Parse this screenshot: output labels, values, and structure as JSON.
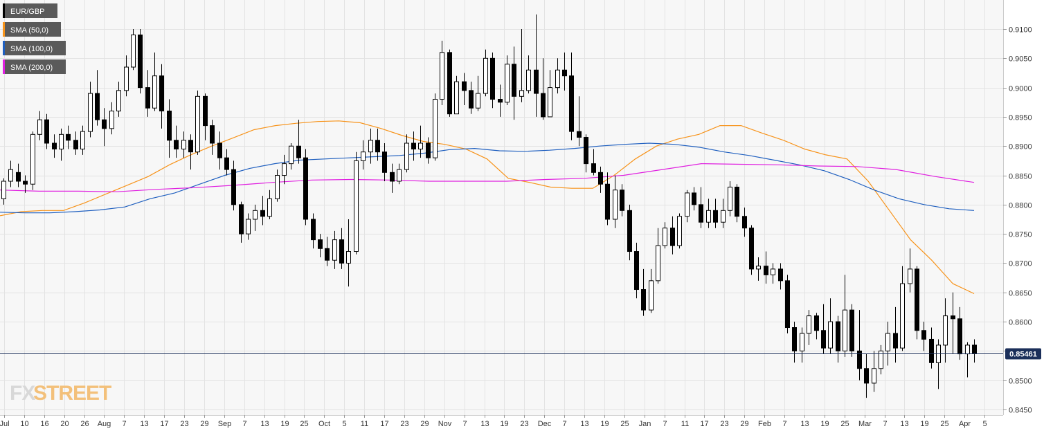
{
  "chart_data": {
    "type": "candlestick",
    "instrument": "EUR/GBP",
    "ylim": [
      0.8445,
      0.9125
    ],
    "y_ticks": [
      "0.9100",
      "0.9050",
      "0.9000",
      "0.8950",
      "0.8900",
      "0.8850",
      "0.8800",
      "0.8750",
      "0.8700",
      "0.8650",
      "0.8600",
      "0.8550",
      "0.8500",
      "0.8450"
    ],
    "x_ticks": [
      "Jul",
      "10",
      "16",
      "20",
      "26",
      "Aug",
      "7",
      "13",
      "17",
      "23",
      "29",
      "Sep",
      "7",
      "13",
      "19",
      "25",
      "Oct",
      "5",
      "11",
      "17",
      "23",
      "29",
      "Nov",
      "7",
      "13",
      "19",
      "23",
      "Dec",
      "7",
      "13",
      "19",
      "25",
      "Jan",
      "7",
      "11",
      "17",
      "23",
      "29",
      "Feb",
      "7",
      "13",
      "19",
      "25",
      "Mar",
      "7",
      "13",
      "19",
      "25",
      "Apr",
      "5"
    ],
    "last_price": "0.85461",
    "grid": true,
    "legend": [
      {
        "label": "EUR/GBP",
        "color": "#000000"
      },
      {
        "label": "SMA (50,0)",
        "color": "#f7931a"
      },
      {
        "label": "SMA (100,0)",
        "color": "#1f5fbf"
      },
      {
        "label": "SMA (200,0)",
        "color": "#e020e0"
      }
    ],
    "series": [
      {
        "name": "SMA (50,0)",
        "color": "#f7931a",
        "values": [
          0.8781,
          0.8788,
          0.879,
          0.879,
          0.8803,
          0.8818,
          0.8833,
          0.8848,
          0.8868,
          0.8885,
          0.89,
          0.8914,
          0.8928,
          0.8935,
          0.8939,
          0.8942,
          0.8943,
          0.894,
          0.893,
          0.8918,
          0.8908,
          0.8903,
          0.8895,
          0.8878,
          0.8845,
          0.8838,
          0.883,
          0.8828,
          0.8828,
          0.885,
          0.8878,
          0.89,
          0.8912,
          0.892,
          0.8935,
          0.8935,
          0.8922,
          0.891,
          0.8895,
          0.8885,
          0.8878,
          0.884,
          0.879,
          0.874,
          0.8705,
          0.8665,
          0.8648
        ]
      },
      {
        "name": "SMA (100,0)",
        "color": "#1f5fbf",
        "values": [
          0.8787,
          0.8786,
          0.8786,
          0.8788,
          0.8791,
          0.8796,
          0.881,
          0.882,
          0.8835,
          0.885,
          0.8862,
          0.887,
          0.8876,
          0.8878,
          0.888,
          0.8882,
          0.8884,
          0.8888,
          0.8894,
          0.8896,
          0.8892,
          0.8891,
          0.8893,
          0.8896,
          0.89,
          0.8903,
          0.8905,
          0.8903,
          0.8898,
          0.889,
          0.8884,
          0.8876,
          0.8868,
          0.8858,
          0.8843,
          0.8825,
          0.881,
          0.88,
          0.8793,
          0.879
        ]
      },
      {
        "name": "SMA (200,0)",
        "color": "#e020e0",
        "values": [
          0.8825,
          0.8823,
          0.8823,
          0.8822,
          0.8826,
          0.8829,
          0.8833,
          0.8838,
          0.8842,
          0.8843,
          0.8842,
          0.884,
          0.884,
          0.884,
          0.8843,
          0.8845,
          0.885,
          0.886,
          0.887,
          0.8869,
          0.8868,
          0.8866,
          0.8865,
          0.886,
          0.8848,
          0.8838
        ]
      }
    ],
    "candles": [
      [
        0.881,
        0.884,
        0.88,
        0.8845
      ],
      [
        0.884,
        0.886,
        0.883,
        0.8875
      ],
      [
        0.8855,
        0.884,
        0.883,
        0.887
      ],
      [
        0.884,
        0.8835,
        0.882,
        0.885
      ],
      [
        0.8835,
        0.892,
        0.8825,
        0.8925
      ],
      [
        0.892,
        0.8945,
        0.891,
        0.896
      ],
      [
        0.8945,
        0.8905,
        0.8895,
        0.8955
      ],
      [
        0.8905,
        0.8895,
        0.888,
        0.892
      ],
      [
        0.8895,
        0.892,
        0.8875,
        0.893
      ],
      [
        0.892,
        0.891,
        0.8895,
        0.8935
      ],
      [
        0.891,
        0.8895,
        0.8885,
        0.8925
      ],
      [
        0.8895,
        0.8925,
        0.8885,
        0.8935
      ],
      [
        0.8925,
        0.899,
        0.8915,
        0.901
      ],
      [
        0.899,
        0.8945,
        0.8935,
        0.903
      ],
      [
        0.8945,
        0.893,
        0.89,
        0.8965
      ],
      [
        0.893,
        0.896,
        0.892,
        0.8975
      ],
      [
        0.896,
        0.8995,
        0.895,
        0.901
      ],
      [
        0.8995,
        0.9035,
        0.8985,
        0.9055
      ],
      [
        0.9035,
        0.909,
        0.903,
        0.91
      ],
      [
        0.909,
        0.9,
        0.899,
        0.91
      ],
      [
        0.9,
        0.8965,
        0.895,
        0.903
      ],
      [
        0.8965,
        0.902,
        0.896,
        0.906
      ],
      [
        0.902,
        0.896,
        0.893,
        0.904
      ],
      [
        0.896,
        0.891,
        0.888,
        0.898
      ],
      [
        0.891,
        0.8895,
        0.888,
        0.8935
      ],
      [
        0.8895,
        0.891,
        0.888,
        0.8925
      ],
      [
        0.891,
        0.889,
        0.886,
        0.892
      ],
      [
        0.889,
        0.8985,
        0.8885,
        0.8995
      ],
      [
        0.8985,
        0.8935,
        0.891,
        0.899
      ],
      [
        0.8935,
        0.8905,
        0.8885,
        0.8945
      ],
      [
        0.8905,
        0.888,
        0.886,
        0.8925
      ],
      [
        0.888,
        0.886,
        0.885,
        0.8895
      ],
      [
        0.886,
        0.88,
        0.879,
        0.8875
      ],
      [
        0.88,
        0.875,
        0.8735,
        0.8805
      ],
      [
        0.875,
        0.8775,
        0.874,
        0.8785
      ],
      [
        0.8775,
        0.879,
        0.8755,
        0.88
      ],
      [
        0.879,
        0.878,
        0.8765,
        0.8815
      ],
      [
        0.878,
        0.881,
        0.8775,
        0.8825
      ],
      [
        0.881,
        0.885,
        0.8805,
        0.886
      ],
      [
        0.885,
        0.887,
        0.8835,
        0.8885
      ],
      [
        0.887,
        0.89,
        0.886,
        0.8905
      ],
      [
        0.89,
        0.888,
        0.887,
        0.8945
      ],
      [
        0.888,
        0.8775,
        0.8765,
        0.8895
      ],
      [
        0.8775,
        0.874,
        0.8725,
        0.8785
      ],
      [
        0.874,
        0.8725,
        0.871,
        0.875
      ],
      [
        0.8725,
        0.8705,
        0.8695,
        0.8745
      ],
      [
        0.8705,
        0.874,
        0.869,
        0.8755
      ],
      [
        0.874,
        0.87,
        0.869,
        0.876
      ],
      [
        0.87,
        0.872,
        0.866,
        0.8775
      ],
      [
        0.872,
        0.8875,
        0.8715,
        0.889
      ],
      [
        0.8875,
        0.889,
        0.886,
        0.891
      ],
      [
        0.889,
        0.891,
        0.887,
        0.893
      ],
      [
        0.891,
        0.889,
        0.8875,
        0.893
      ],
      [
        0.889,
        0.8855,
        0.884,
        0.8905
      ],
      [
        0.8855,
        0.884,
        0.882,
        0.887
      ],
      [
        0.884,
        0.886,
        0.8835,
        0.887
      ],
      [
        0.886,
        0.8905,
        0.8855,
        0.892
      ],
      [
        0.8905,
        0.8895,
        0.8875,
        0.8925
      ],
      [
        0.8895,
        0.8905,
        0.888,
        0.8935
      ],
      [
        0.8905,
        0.888,
        0.887,
        0.8915
      ],
      [
        0.888,
        0.898,
        0.8875,
        0.899
      ],
      [
        0.898,
        0.906,
        0.897,
        0.908
      ],
      [
        0.906,
        0.8955,
        0.895,
        0.9065
      ],
      [
        0.8955,
        0.901,
        0.8955,
        0.902
      ],
      [
        0.901,
        0.8995,
        0.897,
        0.9025
      ],
      [
        0.8995,
        0.8965,
        0.8955,
        0.901
      ],
      [
        0.8965,
        0.899,
        0.896,
        0.902
      ],
      [
        0.899,
        0.905,
        0.8985,
        0.9065
      ],
      [
        0.905,
        0.898,
        0.8965,
        0.906
      ],
      [
        0.898,
        0.8975,
        0.895,
        0.9005
      ],
      [
        0.8975,
        0.904,
        0.897,
        0.9055
      ],
      [
        0.904,
        0.8985,
        0.8945,
        0.907
      ],
      [
        0.8985,
        0.8995,
        0.8975,
        0.91
      ],
      [
        0.8995,
        0.903,
        0.899,
        0.9055
      ],
      [
        0.903,
        0.899,
        0.895,
        0.9125
      ],
      [
        0.899,
        0.895,
        0.8945,
        0.905
      ],
      [
        0.895,
        0.9,
        0.895,
        0.903
      ],
      [
        0.9,
        0.903,
        0.899,
        0.905
      ],
      [
        0.903,
        0.902,
        0.8995,
        0.906
      ],
      [
        0.902,
        0.8925,
        0.891,
        0.906
      ],
      [
        0.8925,
        0.8915,
        0.89,
        0.8985
      ],
      [
        0.8915,
        0.887,
        0.8855,
        0.892
      ],
      [
        0.887,
        0.8855,
        0.885,
        0.8895
      ],
      [
        0.8855,
        0.8835,
        0.882,
        0.8865
      ],
      [
        0.8835,
        0.8775,
        0.8765,
        0.8855
      ],
      [
        0.8775,
        0.8825,
        0.876,
        0.885
      ],
      [
        0.8825,
        0.879,
        0.878,
        0.8835
      ],
      [
        0.879,
        0.872,
        0.8705,
        0.88
      ],
      [
        0.872,
        0.8655,
        0.864,
        0.8735
      ],
      [
        0.8655,
        0.862,
        0.861,
        0.869
      ],
      [
        0.862,
        0.867,
        0.8615,
        0.869
      ],
      [
        0.867,
        0.873,
        0.8665,
        0.876
      ],
      [
        0.873,
        0.876,
        0.8725,
        0.877
      ],
      [
        0.876,
        0.873,
        0.8715,
        0.878
      ],
      [
        0.873,
        0.878,
        0.8725,
        0.8785
      ],
      [
        0.878,
        0.882,
        0.877,
        0.8825
      ],
      [
        0.882,
        0.88,
        0.879,
        0.883
      ],
      [
        0.88,
        0.877,
        0.876,
        0.883
      ],
      [
        0.877,
        0.879,
        0.876,
        0.881
      ],
      [
        0.879,
        0.877,
        0.876,
        0.881
      ],
      [
        0.877,
        0.879,
        0.876,
        0.881
      ],
      [
        0.879,
        0.883,
        0.878,
        0.884
      ],
      [
        0.883,
        0.878,
        0.877,
        0.8835
      ],
      [
        0.878,
        0.876,
        0.8745,
        0.8795
      ],
      [
        0.876,
        0.869,
        0.868,
        0.8765
      ],
      [
        0.869,
        0.8695,
        0.867,
        0.871
      ],
      [
        0.8695,
        0.868,
        0.8665,
        0.872
      ],
      [
        0.868,
        0.869,
        0.8665,
        0.87
      ],
      [
        0.869,
        0.867,
        0.8655,
        0.87
      ],
      [
        0.867,
        0.859,
        0.858,
        0.868
      ],
      [
        0.859,
        0.855,
        0.853,
        0.86
      ],
      [
        0.855,
        0.858,
        0.853,
        0.859
      ],
      [
        0.858,
        0.861,
        0.856,
        0.862
      ],
      [
        0.861,
        0.8585,
        0.857,
        0.8615
      ],
      [
        0.8585,
        0.8555,
        0.8545,
        0.863
      ],
      [
        0.8555,
        0.86,
        0.8545,
        0.864
      ],
      [
        0.86,
        0.855,
        0.853,
        0.861
      ],
      [
        0.855,
        0.862,
        0.854,
        0.868
      ],
      [
        0.862,
        0.855,
        0.854,
        0.863
      ],
      [
        0.855,
        0.852,
        0.85,
        0.862
      ],
      [
        0.852,
        0.8495,
        0.847,
        0.8545
      ],
      [
        0.8495,
        0.852,
        0.848,
        0.855
      ],
      [
        0.852,
        0.855,
        0.851,
        0.856
      ],
      [
        0.855,
        0.858,
        0.8525,
        0.86
      ],
      [
        0.858,
        0.8555,
        0.853,
        0.8625
      ],
      [
        0.8555,
        0.8665,
        0.855,
        0.8695
      ],
      [
        0.8665,
        0.869,
        0.865,
        0.8725
      ],
      [
        0.869,
        0.8585,
        0.857,
        0.8695
      ],
      [
        0.8585,
        0.857,
        0.855,
        0.86
      ],
      [
        0.857,
        0.853,
        0.852,
        0.859
      ],
      [
        0.853,
        0.856,
        0.8485,
        0.857
      ],
      [
        0.856,
        0.861,
        0.853,
        0.864
      ],
      [
        0.861,
        0.8605,
        0.8545,
        0.865
      ],
      [
        0.8605,
        0.8545,
        0.8535,
        0.8625
      ],
      [
        0.8545,
        0.856,
        0.8505,
        0.8565
      ],
      [
        0.856,
        0.85461,
        0.853,
        0.857
      ]
    ]
  }
}
